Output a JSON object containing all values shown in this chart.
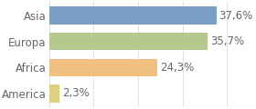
{
  "categories": [
    "America",
    "Africa",
    "Europa",
    "Asia"
  ],
  "values": [
    2.3,
    24.3,
    35.7,
    37.6
  ],
  "bar_colors": [
    "#dfd080",
    "#f0c080",
    "#b5c98e",
    "#7a9ec4"
  ],
  "labels": [
    "2,3%",
    "24,3%",
    "35,7%",
    "37,6%"
  ],
  "background_color": "#ffffff",
  "xlim": [
    0,
    46
  ],
  "bar_height": 0.68,
  "fontsize": 8.5,
  "label_color": "#666666",
  "ytick_color": "#666666",
  "grid_color": "#dddddd"
}
